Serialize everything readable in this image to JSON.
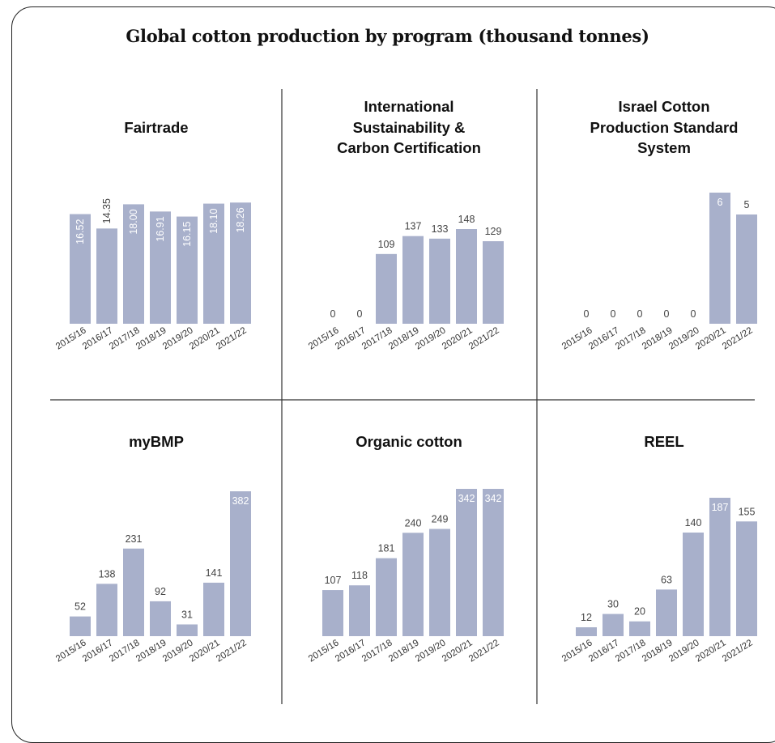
{
  "title": "Global cotton production by program (thousand tonnes)",
  "chart_data": [
    {
      "type": "bar",
      "title": "Fairtrade",
      "categories": [
        "2015/16",
        "2016/17",
        "2017/18",
        "2018/19",
        "2019/20",
        "2020/21",
        "2021/22"
      ],
      "values": [
        16.52,
        14.35,
        18.0,
        16.91,
        16.15,
        18.1,
        18.26
      ],
      "labels": [
        "16.52",
        "14.35",
        "18.00",
        "16.91",
        "16.15",
        "18.10",
        "18.26"
      ],
      "ylim": [
        0,
        20
      ]
    },
    {
      "type": "bar",
      "title": "International Sustainability & Carbon Certification",
      "categories": [
        "2015/16",
        "2016/17",
        "2017/18",
        "2018/19",
        "2019/20",
        "2020/21",
        "2021/22"
      ],
      "values": [
        0,
        0,
        109,
        137,
        133,
        148,
        129
      ],
      "labels": [
        "0",
        "0",
        "109",
        "137",
        "133",
        "148",
        "129"
      ],
      "ylim": [
        0,
        148
      ]
    },
    {
      "type": "bar",
      "title": "Israel Cotton Production Standard System",
      "categories": [
        "2015/16",
        "2016/17",
        "2017/18",
        "2018/19",
        "2019/20",
        "2020/21",
        "2021/22"
      ],
      "values": [
        0,
        0,
        0,
        0,
        0,
        6,
        5
      ],
      "labels": [
        "0",
        "0",
        "0",
        "0",
        "0",
        "6",
        "5"
      ],
      "ylim": [
        0,
        6
      ]
    },
    {
      "type": "bar",
      "title": "myBMP",
      "categories": [
        "2015/16",
        "2016/17",
        "2017/18",
        "2018/19",
        "2019/20",
        "2020/21",
        "2021/22"
      ],
      "values": [
        52,
        138,
        231,
        92,
        31,
        141,
        382
      ],
      "labels": [
        "52",
        "138",
        "231",
        "92",
        "31",
        "141",
        "382"
      ],
      "ylim": [
        0,
        382
      ]
    },
    {
      "type": "bar",
      "title": "Organic cotton",
      "categories": [
        "2015/16",
        "2016/17",
        "2017/18",
        "2018/19",
        "2019/20",
        "2020/21",
        "2021/22"
      ],
      "values": [
        107,
        118,
        181,
        240,
        249,
        342,
        342
      ],
      "labels": [
        "107",
        "118",
        "181",
        "240",
        "249",
        "342",
        "342"
      ],
      "ylim": [
        0,
        342
      ]
    },
    {
      "type": "bar",
      "title": "REEL",
      "categories": [
        "2015/16",
        "2016/17",
        "2017/18",
        "2018/19",
        "2019/20",
        "2020/21",
        "2021/22"
      ],
      "values": [
        12,
        30,
        20,
        63,
        140,
        187,
        155
      ],
      "labels": [
        "12",
        "30",
        "20",
        "63",
        "140",
        "187",
        "155"
      ],
      "ylim": [
        0,
        187
      ]
    }
  ]
}
